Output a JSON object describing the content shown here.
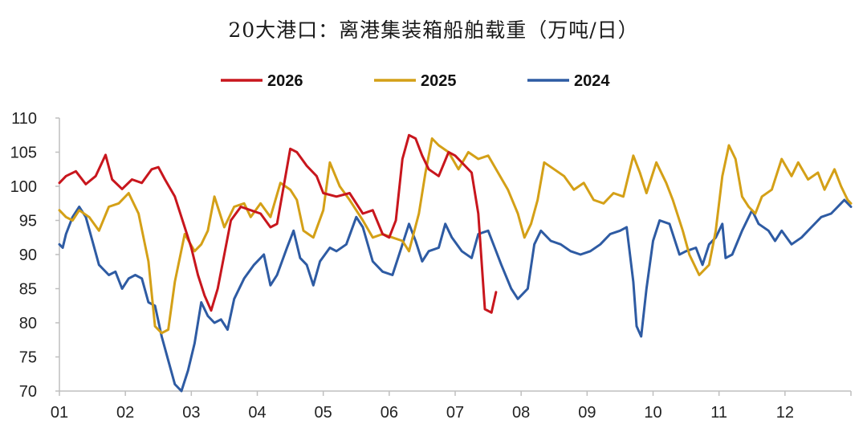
{
  "title": "20大港口：离港集装箱船舶载重（万吨/日）",
  "chart_data": {
    "type": "line",
    "title": "20大港口：离港集装箱船舶载重（万吨/日）",
    "xlabel": "",
    "ylabel": "",
    "ylim": [
      70,
      110
    ],
    "yticks": [
      "70",
      "75",
      "80",
      "85",
      "90",
      "95",
      "100",
      "105",
      "110"
    ],
    "xticks": [
      "01",
      "02",
      "03",
      "04",
      "05",
      "06",
      "07",
      "08",
      "09",
      "10",
      "11",
      "12"
    ],
    "xlim_months": [
      1,
      13
    ],
    "grid": false,
    "legend_position": "top-center",
    "series": [
      {
        "name": "2026",
        "color": "#c8161d",
        "points": [
          [
            1.0,
            100.5
          ],
          [
            1.1,
            101.5
          ],
          [
            1.25,
            102.2
          ],
          [
            1.4,
            100.3
          ],
          [
            1.55,
            101.5
          ],
          [
            1.7,
            104.6
          ],
          [
            1.8,
            101.0
          ],
          [
            1.95,
            99.6
          ],
          [
            2.1,
            101.0
          ],
          [
            2.25,
            100.5
          ],
          [
            2.4,
            102.5
          ],
          [
            2.5,
            102.8
          ],
          [
            2.6,
            101.0
          ],
          [
            2.75,
            98.5
          ],
          [
            2.9,
            94.0
          ],
          [
            3.0,
            91.0
          ],
          [
            3.1,
            87.0
          ],
          [
            3.2,
            84.0
          ],
          [
            3.3,
            81.8
          ],
          [
            3.4,
            85.0
          ],
          [
            3.5,
            90.0
          ],
          [
            3.6,
            95.0
          ],
          [
            3.75,
            97.0
          ],
          [
            3.9,
            96.5
          ],
          [
            4.05,
            96.0
          ],
          [
            4.2,
            94.0
          ],
          [
            4.3,
            94.5
          ],
          [
            4.4,
            100.0
          ],
          [
            4.5,
            105.5
          ],
          [
            4.6,
            105.0
          ],
          [
            4.75,
            103.0
          ],
          [
            4.9,
            101.5
          ],
          [
            5.0,
            99.0
          ],
          [
            5.2,
            98.5
          ],
          [
            5.4,
            99.0
          ],
          [
            5.6,
            96.0
          ],
          [
            5.75,
            96.5
          ],
          [
            5.9,
            93.0
          ],
          [
            6.0,
            92.5
          ],
          [
            6.1,
            95.0
          ],
          [
            6.2,
            104.0
          ],
          [
            6.3,
            107.5
          ],
          [
            6.4,
            107.0
          ],
          [
            6.5,
            104.5
          ],
          [
            6.6,
            102.5
          ],
          [
            6.75,
            101.5
          ],
          [
            6.9,
            105.0
          ],
          [
            7.0,
            104.5
          ],
          [
            7.15,
            103.0
          ],
          [
            7.25,
            102.0
          ],
          [
            7.35,
            96.0
          ],
          [
            7.45,
            82.0
          ],
          [
            7.55,
            81.5
          ],
          [
            7.62,
            84.5
          ]
        ]
      },
      {
        "name": "2025",
        "color": "#d4a017",
        "points": [
          [
            1.0,
            96.5
          ],
          [
            1.1,
            95.5
          ],
          [
            1.2,
            95.0
          ],
          [
            1.3,
            96.5
          ],
          [
            1.45,
            95.5
          ],
          [
            1.6,
            93.5
          ],
          [
            1.75,
            97.0
          ],
          [
            1.9,
            97.5
          ],
          [
            2.05,
            99.0
          ],
          [
            2.2,
            96.0
          ],
          [
            2.35,
            89.0
          ],
          [
            2.45,
            79.5
          ],
          [
            2.55,
            78.5
          ],
          [
            2.65,
            79.0
          ],
          [
            2.75,
            86.0
          ],
          [
            2.9,
            93.0
          ],
          [
            3.05,
            90.5
          ],
          [
            3.15,
            91.5
          ],
          [
            3.25,
            93.5
          ],
          [
            3.35,
            98.5
          ],
          [
            3.5,
            94.0
          ],
          [
            3.65,
            97.0
          ],
          [
            3.8,
            97.5
          ],
          [
            3.9,
            95.5
          ],
          [
            4.05,
            97.5
          ],
          [
            4.2,
            95.5
          ],
          [
            4.35,
            100.5
          ],
          [
            4.5,
            99.5
          ],
          [
            4.6,
            98.0
          ],
          [
            4.7,
            93.5
          ],
          [
            4.85,
            92.5
          ],
          [
            5.0,
            96.5
          ],
          [
            5.1,
            103.5
          ],
          [
            5.25,
            100.0
          ],
          [
            5.4,
            98.0
          ],
          [
            5.6,
            95.0
          ],
          [
            5.75,
            92.5
          ],
          [
            5.9,
            93.0
          ],
          [
            6.05,
            92.5
          ],
          [
            6.2,
            92.0
          ],
          [
            6.3,
            90.5
          ],
          [
            6.45,
            96.0
          ],
          [
            6.55,
            102.0
          ],
          [
            6.65,
            107.0
          ],
          [
            6.75,
            106.0
          ],
          [
            6.9,
            105.0
          ],
          [
            7.05,
            102.5
          ],
          [
            7.2,
            105.0
          ],
          [
            7.35,
            104.0
          ],
          [
            7.5,
            104.5
          ],
          [
            7.65,
            102.0
          ],
          [
            7.8,
            99.5
          ],
          [
            7.95,
            96.0
          ],
          [
            8.05,
            92.5
          ],
          [
            8.15,
            94.5
          ],
          [
            8.25,
            98.0
          ],
          [
            8.35,
            103.5
          ],
          [
            8.5,
            102.5
          ],
          [
            8.65,
            101.5
          ],
          [
            8.8,
            99.5
          ],
          [
            8.95,
            100.5
          ],
          [
            9.1,
            98.0
          ],
          [
            9.25,
            97.5
          ],
          [
            9.4,
            99.0
          ],
          [
            9.55,
            98.5
          ],
          [
            9.7,
            104.5
          ],
          [
            9.8,
            102.0
          ],
          [
            9.9,
            99.0
          ],
          [
            10.05,
            103.5
          ],
          [
            10.2,
            100.5
          ],
          [
            10.3,
            98.0
          ],
          [
            10.45,
            93.5
          ],
          [
            10.55,
            90.0
          ],
          [
            10.7,
            87.0
          ],
          [
            10.85,
            88.5
          ],
          [
            10.95,
            93.5
          ],
          [
            11.05,
            101.5
          ],
          [
            11.15,
            106.0
          ],
          [
            11.25,
            104.0
          ],
          [
            11.35,
            98.5
          ],
          [
            11.45,
            97.0
          ],
          [
            11.55,
            96.0
          ],
          [
            11.65,
            98.5
          ],
          [
            11.8,
            99.5
          ],
          [
            11.95,
            104.0
          ],
          [
            12.1,
            101.5
          ],
          [
            12.2,
            103.5
          ],
          [
            12.35,
            101.0
          ],
          [
            12.5,
            102.0
          ],
          [
            12.6,
            99.5
          ],
          [
            12.75,
            102.5
          ],
          [
            12.85,
            100.0
          ],
          [
            12.95,
            98.0
          ],
          [
            13.0,
            97.5
          ]
        ]
      },
      {
        "name": "2024",
        "color": "#2e5ba3",
        "points": [
          [
            1.0,
            91.5
          ],
          [
            1.05,
            91.0
          ],
          [
            1.1,
            93.0
          ],
          [
            1.2,
            95.5
          ],
          [
            1.3,
            97.0
          ],
          [
            1.4,
            95.5
          ],
          [
            1.5,
            92.0
          ],
          [
            1.6,
            88.5
          ],
          [
            1.75,
            87.0
          ],
          [
            1.85,
            87.5
          ],
          [
            1.95,
            85.0
          ],
          [
            2.05,
            86.5
          ],
          [
            2.15,
            87.0
          ],
          [
            2.25,
            86.5
          ],
          [
            2.35,
            83.0
          ],
          [
            2.45,
            82.5
          ],
          [
            2.55,
            78.0
          ],
          [
            2.65,
            74.5
          ],
          [
            2.75,
            71.0
          ],
          [
            2.85,
            70.0
          ],
          [
            2.95,
            73.0
          ],
          [
            3.05,
            77.0
          ],
          [
            3.15,
            83.0
          ],
          [
            3.25,
            81.0
          ],
          [
            3.35,
            80.0
          ],
          [
            3.45,
            80.5
          ],
          [
            3.55,
            79.0
          ],
          [
            3.65,
            83.5
          ],
          [
            3.8,
            86.5
          ],
          [
            3.95,
            88.5
          ],
          [
            4.1,
            90.0
          ],
          [
            4.2,
            85.5
          ],
          [
            4.3,
            87.0
          ],
          [
            4.45,
            91.0
          ],
          [
            4.55,
            93.5
          ],
          [
            4.65,
            89.5
          ],
          [
            4.75,
            88.5
          ],
          [
            4.85,
            85.5
          ],
          [
            4.95,
            89.0
          ],
          [
            5.1,
            91.0
          ],
          [
            5.2,
            90.5
          ],
          [
            5.35,
            91.5
          ],
          [
            5.5,
            95.5
          ],
          [
            5.6,
            94.0
          ],
          [
            5.75,
            89.0
          ],
          [
            5.9,
            87.5
          ],
          [
            6.05,
            87.0
          ],
          [
            6.15,
            90.0
          ],
          [
            6.3,
            94.5
          ],
          [
            6.4,
            92.0
          ],
          [
            6.5,
            89.0
          ],
          [
            6.6,
            90.5
          ],
          [
            6.75,
            91.0
          ],
          [
            6.85,
            94.5
          ],
          [
            6.95,
            92.5
          ],
          [
            7.1,
            90.5
          ],
          [
            7.25,
            89.5
          ],
          [
            7.35,
            93.0
          ],
          [
            7.5,
            93.5
          ],
          [
            7.6,
            91.0
          ],
          [
            7.7,
            88.5
          ],
          [
            7.85,
            85.0
          ],
          [
            7.95,
            83.5
          ],
          [
            8.1,
            85.0
          ],
          [
            8.2,
            91.5
          ],
          [
            8.3,
            93.5
          ],
          [
            8.45,
            92.0
          ],
          [
            8.6,
            91.5
          ],
          [
            8.75,
            90.5
          ],
          [
            8.9,
            90.0
          ],
          [
            9.05,
            90.5
          ],
          [
            9.2,
            91.5
          ],
          [
            9.35,
            93.0
          ],
          [
            9.5,
            93.5
          ],
          [
            9.6,
            94.0
          ],
          [
            9.7,
            86.0
          ],
          [
            9.75,
            79.5
          ],
          [
            9.82,
            78.0
          ],
          [
            9.9,
            85.0
          ],
          [
            10.0,
            92.0
          ],
          [
            10.1,
            95.0
          ],
          [
            10.25,
            94.5
          ],
          [
            10.4,
            90.0
          ],
          [
            10.5,
            90.5
          ],
          [
            10.65,
            91.0
          ],
          [
            10.75,
            88.5
          ],
          [
            10.85,
            91.5
          ],
          [
            10.95,
            92.5
          ],
          [
            11.05,
            94.5
          ],
          [
            11.1,
            89.5
          ],
          [
            11.2,
            90.0
          ],
          [
            11.35,
            93.5
          ],
          [
            11.5,
            96.5
          ],
          [
            11.6,
            94.5
          ],
          [
            11.75,
            93.5
          ],
          [
            11.85,
            92.0
          ],
          [
            11.95,
            93.5
          ],
          [
            12.1,
            91.5
          ],
          [
            12.25,
            92.5
          ],
          [
            12.4,
            94.0
          ],
          [
            12.55,
            95.5
          ],
          [
            12.7,
            96.0
          ],
          [
            12.8,
            97.0
          ],
          [
            12.9,
            98.0
          ],
          [
            13.0,
            97.0
          ]
        ]
      }
    ]
  }
}
